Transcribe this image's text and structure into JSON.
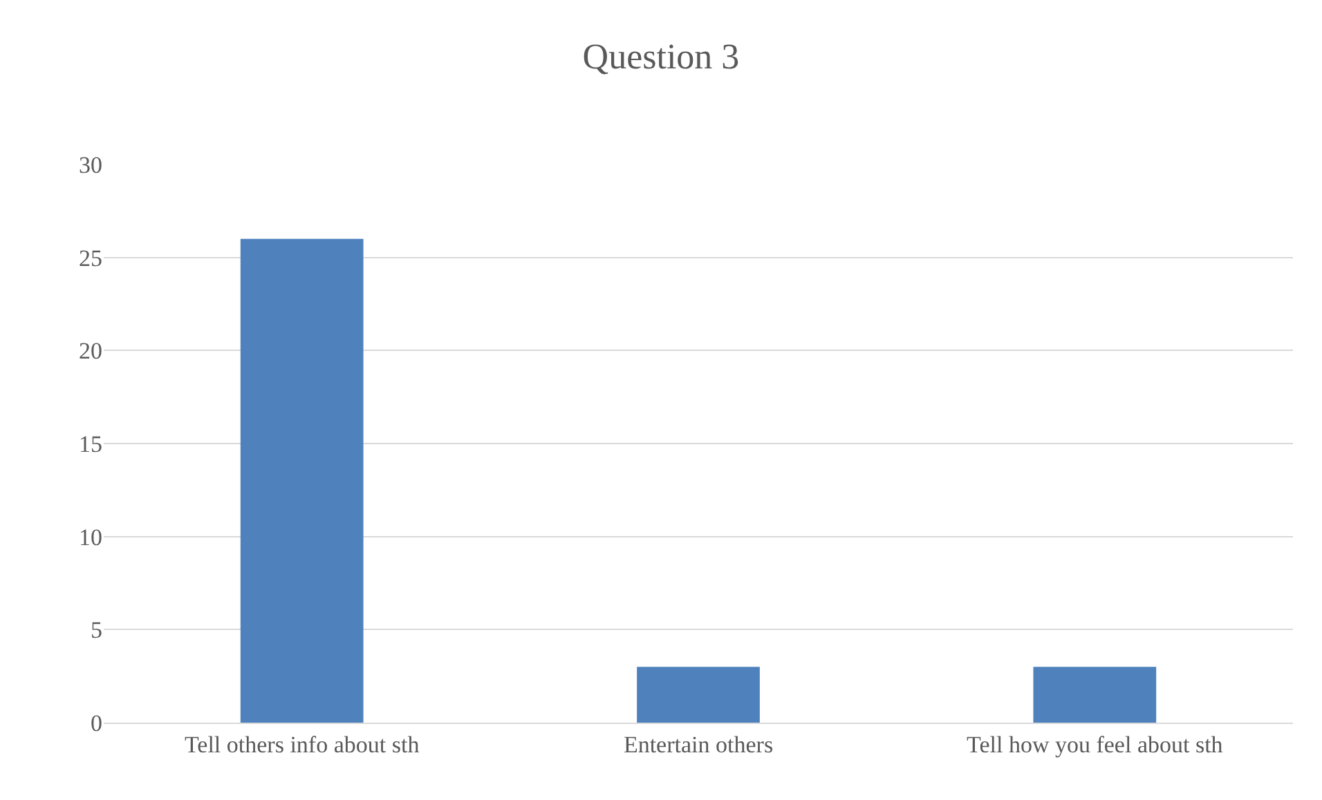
{
  "chart_data": {
    "type": "bar",
    "title": "Question 3",
    "categories": [
      "Tell others info about sth",
      "Entertain others",
      "Tell how you feel about sth"
    ],
    "values": [
      26,
      3,
      3
    ],
    "color": "#4f81bd",
    "ylim": [
      0,
      30
    ],
    "yticks": [
      0,
      5,
      10,
      15,
      20,
      25,
      30
    ],
    "grid": "y",
    "legend": false
  }
}
